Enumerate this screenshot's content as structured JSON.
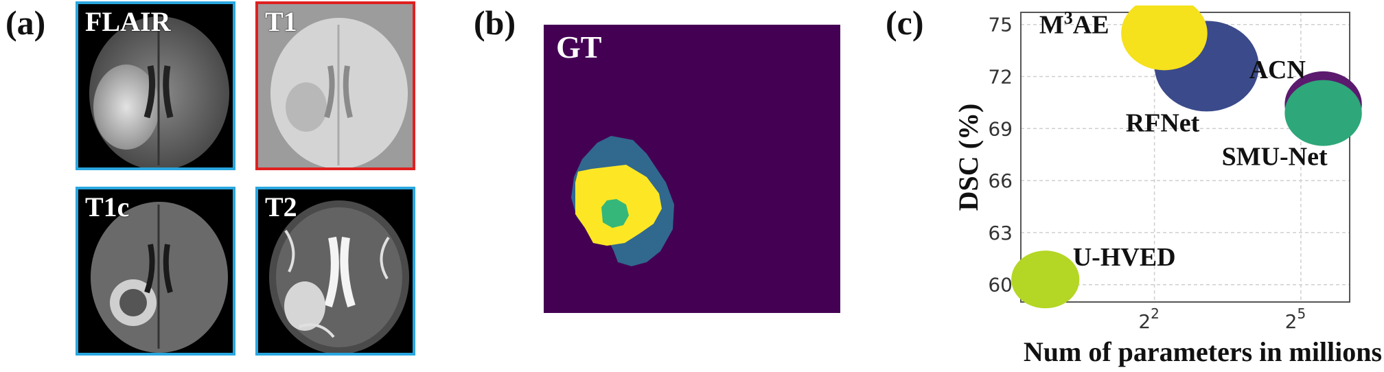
{
  "figure": {
    "panels": {
      "a": "(a)",
      "b": "(b)",
      "c": "(c)"
    },
    "mri_images": [
      {
        "label": "FLAIR",
        "border_color": "#2aa7e0",
        "modality": "flair"
      },
      {
        "label": "T1",
        "border_color": "#e02020",
        "modality": "t1"
      },
      {
        "label": "T1c",
        "border_color": "#2aa7e0",
        "modality": "t1c"
      },
      {
        "label": "T2",
        "border_color": "#2aa7e0",
        "modality": "t2"
      }
    ],
    "gt": {
      "label": "GT",
      "colors": {
        "background": "#440154",
        "edema": "#31688e",
        "enhancing": "#fde725",
        "necrotic": "#35b779"
      }
    }
  },
  "chart_data": {
    "type": "scatter",
    "title": "",
    "xlabel": "Num of parameters in millions",
    "ylabel": "DSC (%)",
    "x_scale": "log2",
    "xlim": [
      0.6,
      64
    ],
    "ylim": [
      59,
      75.7
    ],
    "x_ticks": [
      4,
      32
    ],
    "x_tick_labels": [
      {
        "base": "2",
        "exp": "2"
      },
      {
        "base": "2",
        "exp": "5"
      }
    ],
    "y_ticks": [
      60,
      63,
      66,
      69,
      72,
      75
    ],
    "grid": true,
    "points": [
      {
        "name": "M3AE",
        "label_base": "M",
        "label_sup": "3",
        "label_rest": "AE",
        "x": 4.6,
        "y": 74.5,
        "size": 0.7,
        "color": "#f5e11c"
      },
      {
        "name": "RFNet",
        "label_base": "RFNet",
        "x": 8.4,
        "y": 72.6,
        "size": 1.0,
        "color": "#3b4a8a"
      },
      {
        "name": "ACN",
        "label_base": "ACN",
        "x": 44,
        "y": 70.4,
        "size": 0.55,
        "color": "#5b1a6e"
      },
      {
        "name": "SMU-Net",
        "label_base": "SMU-Net",
        "x": 44,
        "y": 69.9,
        "size": 0.55,
        "color": "#2ea77a"
      },
      {
        "name": "U-HVED",
        "label_base": "U-HVED",
        "x": 0.85,
        "y": 60.3,
        "size": 0.4,
        "color": "#b4d624"
      }
    ]
  }
}
